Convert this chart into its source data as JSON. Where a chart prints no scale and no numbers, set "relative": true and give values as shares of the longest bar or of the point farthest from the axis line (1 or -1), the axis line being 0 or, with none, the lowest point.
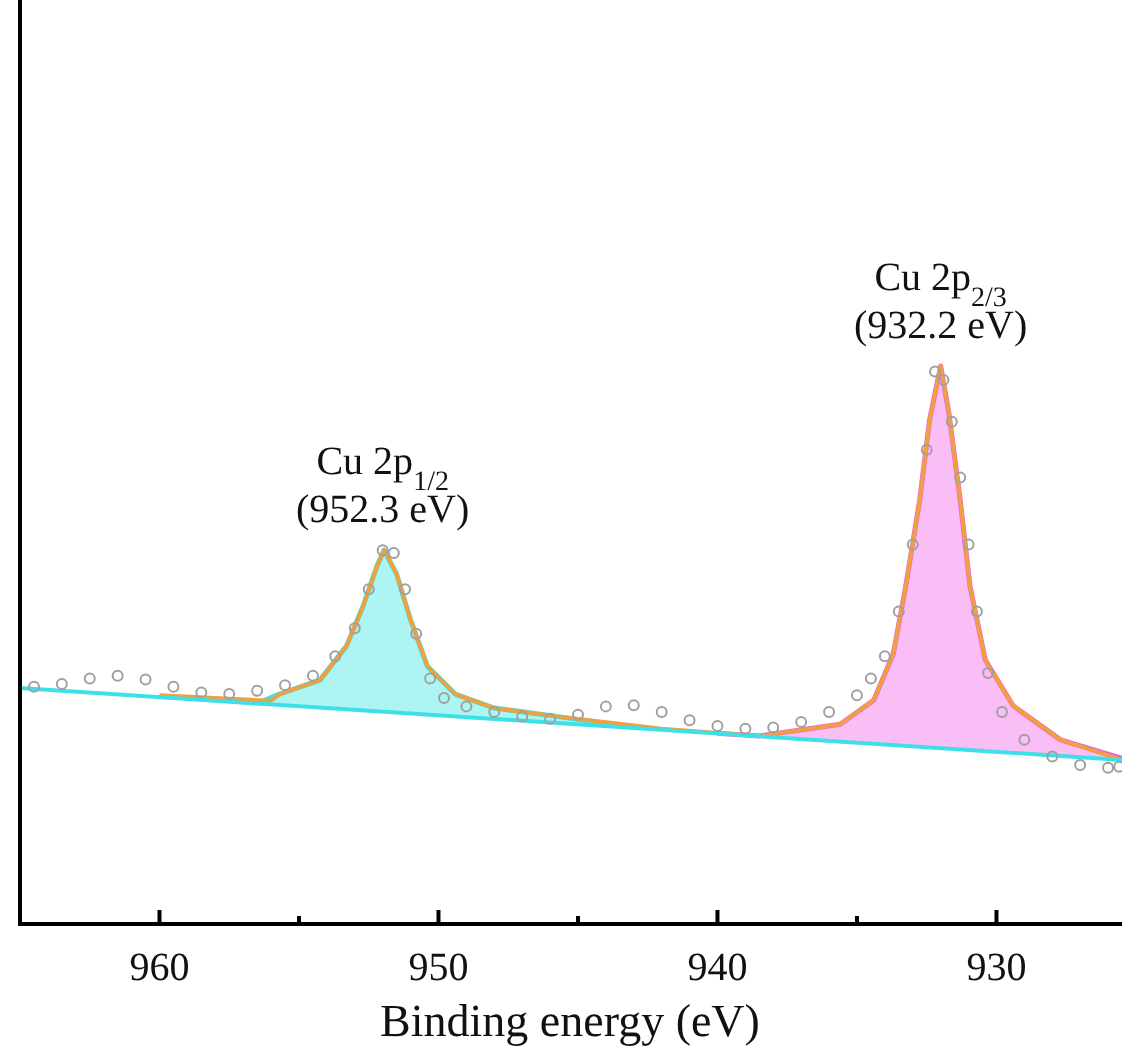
{
  "chart_data": {
    "type": "line",
    "relative": true,
    "xlabel": "Binding energy (eV)",
    "xlim": [
      965,
      925.5
    ],
    "xticks": [
      960,
      {
        "value": 955,
        "label": null
      },
      950,
      {
        "value": 945,
        "label": null
      },
      940,
      {
        "value": 935,
        "label": null
      },
      930
    ],
    "annotations": [
      {
        "text": "Cu 2p$_{1/2}$\n(952.3 eV)",
        "x": 952.0,
        "y": 0.67
      },
      {
        "text": "Cu 2p$_{2/3}$\n(932.2 eV)",
        "x": 932.0,
        "y": 1.0
      }
    ],
    "series": [
      {
        "type": "area",
        "color": "#33e6e0",
        "x": [
          956.5,
          955.7,
          954.25,
          953.3,
          952.7,
          952.2,
          951.95,
          951.5,
          951,
          950.4,
          949.4,
          948,
          945.9,
          943
        ],
        "values": [
          0.395,
          0.412,
          0.437,
          0.498,
          0.57,
          0.642,
          0.67,
          0.627,
          0.545,
          0.462,
          0.412,
          0.387,
          0.373,
          0.352
        ]
      },
      {
        "type": "area",
        "color": "#f05ce6",
        "x": [
          940,
          938.5,
          935.6,
          934.4,
          933.7,
          933.25,
          932.75,
          932.4,
          932,
          931.7,
          931.3,
          930.95,
          930.4,
          929.4,
          927.7,
          925.5
        ],
        "values": [
          0.342,
          0.337,
          0.358,
          0.401,
          0.484,
          0.606,
          0.76,
          0.903,
          1.0,
          0.914,
          0.76,
          0.606,
          0.473,
          0.391,
          0.33,
          0.297
        ]
      },
      {
        "type": "scatter",
        "marker": "circle",
        "color": "#a0a0a0",
        "x": [
          964.5,
          963.5,
          962.5,
          961.5,
          960.5,
          959.5,
          958.5,
          957.5,
          956.5,
          955.5,
          954.5,
          953.7,
          953.0,
          952.5,
          952.0,
          951.6,
          951.2,
          950.8,
          950.3,
          949.8,
          949.0,
          948.0,
          947.0,
          946.0,
          945.0,
          944.0,
          943.0,
          942.0,
          941.0,
          940.0,
          939.0,
          938.0,
          937.0,
          936.0,
          935.0,
          934.5,
          934.0,
          933.5,
          933.0,
          932.5,
          932.2,
          931.9,
          931.6,
          931.3,
          931.0,
          930.7,
          930.3,
          929.8,
          929.0,
          928.0,
          927.0,
          926.0,
          925.6
        ],
        "values": [
          0.425,
          0.43,
          0.44,
          0.445,
          0.438,
          0.425,
          0.415,
          0.412,
          0.418,
          0.428,
          0.445,
          0.48,
          0.53,
          0.6,
          0.67,
          0.665,
          0.6,
          0.52,
          0.44,
          0.405,
          0.39,
          0.38,
          0.372,
          0.368,
          0.375,
          0.39,
          0.392,
          0.38,
          0.365,
          0.355,
          0.35,
          0.352,
          0.362,
          0.38,
          0.41,
          0.44,
          0.48,
          0.56,
          0.68,
          0.85,
          0.99,
          0.975,
          0.9,
          0.8,
          0.68,
          0.56,
          0.45,
          0.38,
          0.33,
          0.3,
          0.285,
          0.28,
          0.282
        ]
      },
      {
        "color": "#f0a040",
        "x": [
          960,
          956,
          955.7,
          954.25,
          953.3,
          952.7,
          952.2,
          951.95,
          951.5,
          951,
          950.4,
          949.4,
          948,
          945.9,
          942,
          938.5,
          935.6,
          934.4,
          933.7,
          933.25,
          932.75,
          932.4,
          932,
          931.7,
          931.3,
          930.95,
          930.4,
          929.4,
          927.7,
          925.5
        ],
        "values": [
          0.41,
          0.4,
          0.412,
          0.437,
          0.498,
          0.57,
          0.642,
          0.67,
          0.627,
          0.545,
          0.462,
          0.412,
          0.387,
          0.373,
          0.35,
          0.337,
          0.358,
          0.401,
          0.484,
          0.606,
          0.76,
          0.903,
          1.0,
          0.914,
          0.76,
          0.606,
          0.473,
          0.391,
          0.33,
          0.294
        ]
      },
      {
        "color": "#3de0e8",
        "x": [
          965,
          925.5
        ],
        "values": [
          0.423,
          0.294
        ]
      }
    ]
  }
}
